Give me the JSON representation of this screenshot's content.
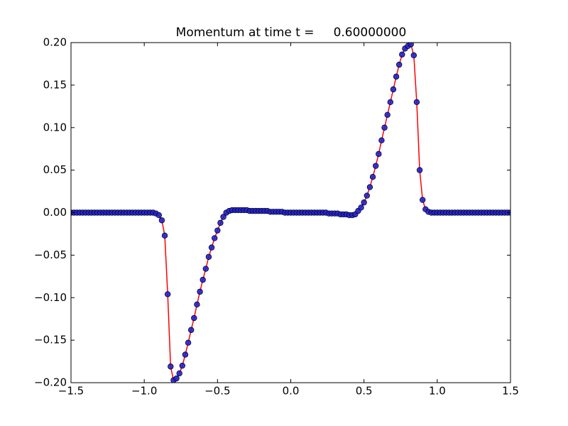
{
  "chart_data": {
    "type": "line",
    "title": "Momentum at time t =     0.60000000",
    "x": [
      -1.5,
      -1.48,
      -1.46,
      -1.44,
      -1.42,
      -1.4,
      -1.38,
      -1.36,
      -1.34,
      -1.32,
      -1.3,
      -1.28,
      -1.26,
      -1.24,
      -1.22,
      -1.2,
      -1.18,
      -1.16,
      -1.14,
      -1.12,
      -1.1,
      -1.08,
      -1.06,
      -1.04,
      -1.02,
      -1.0,
      -0.98,
      -0.96,
      -0.94,
      -0.92,
      -0.9,
      -0.88,
      -0.86,
      -0.84,
      -0.82,
      -0.8,
      -0.78,
      -0.76,
      -0.74,
      -0.72,
      -0.7,
      -0.68,
      -0.66,
      -0.64,
      -0.62,
      -0.6,
      -0.58,
      -0.56,
      -0.54,
      -0.52,
      -0.5,
      -0.48,
      -0.46,
      -0.44,
      -0.42,
      -0.4,
      -0.38,
      -0.36,
      -0.34,
      -0.32,
      -0.3,
      -0.28,
      -0.26,
      -0.24,
      -0.22,
      -0.2,
      -0.18,
      -0.16,
      -0.14,
      -0.12,
      -0.1,
      -0.08,
      -0.06,
      -0.04,
      -0.02,
      0,
      0.02,
      0.04,
      0.06,
      0.08,
      0.1,
      0.12,
      0.14,
      0.16,
      0.18,
      0.2,
      0.22,
      0.24,
      0.26,
      0.28,
      0.3,
      0.32,
      0.34,
      0.36,
      0.38,
      0.4,
      0.42,
      0.44,
      0.46,
      0.48,
      0.5,
      0.52,
      0.54,
      0.56,
      0.58,
      0.6,
      0.62,
      0.64,
      0.66,
      0.68,
      0.7,
      0.72,
      0.74,
      0.76,
      0.78,
      0.8,
      0.82,
      0.84,
      0.86,
      0.88,
      0.9,
      0.92,
      0.94,
      0.96,
      0.98,
      1.0,
      1.02,
      1.04,
      1.06,
      1.08,
      1.1,
      1.12,
      1.14,
      1.16,
      1.18,
      1.2,
      1.22,
      1.24,
      1.26,
      1.28,
      1.3,
      1.32,
      1.34,
      1.36,
      1.38,
      1.4,
      1.42,
      1.44,
      1.46,
      1.48,
      1.5
    ],
    "series": [
      {
        "color": "#ff0000",
        "marker_color": "#2222cc",
        "values": [
          0,
          0,
          0,
          0,
          0,
          0,
          0,
          0,
          0,
          0,
          0,
          0,
          0,
          0,
          0,
          0,
          0,
          0,
          0,
          0,
          0,
          0,
          0,
          0,
          0,
          0,
          0,
          0,
          0,
          -0.001,
          -0.003,
          -0.009,
          -0.027,
          -0.096,
          -0.181,
          -0.197,
          -0.195,
          -0.189,
          -0.18,
          -0.167,
          -0.153,
          -0.138,
          -0.124,
          -0.108,
          -0.093,
          -0.079,
          -0.066,
          -0.052,
          -0.041,
          -0.03,
          -0.021,
          -0.012,
          -0.005,
          0,
          0.002,
          0.003,
          0.003,
          0.003,
          0.003,
          0.003,
          0.003,
          0.002,
          0.002,
          0.002,
          0.002,
          0.002,
          0.002,
          0.002,
          0.001,
          0.001,
          0.001,
          0.001,
          0.001,
          0,
          0,
          0,
          0,
          0,
          0,
          0,
          0,
          0,
          0,
          0,
          0,
          0,
          0,
          0,
          -0.001,
          -0.001,
          -0.001,
          -0.001,
          -0.002,
          -0.002,
          -0.002,
          -0.003,
          -0.003,
          -0.002,
          0.002,
          0.006,
          0.012,
          0.02,
          0.03,
          0.042,
          0.055,
          0.069,
          0.085,
          0.1,
          0.115,
          0.13,
          0.145,
          0.16,
          0.174,
          0.186,
          0.193,
          0.196,
          0.198,
          0.185,
          0.13,
          0.05,
          0.015,
          0.004,
          0.001,
          0,
          0,
          0,
          0,
          0,
          0,
          0,
          0,
          0,
          0,
          0,
          0,
          0,
          0,
          0,
          0,
          0,
          0,
          0,
          0,
          0,
          0,
          0,
          0,
          0,
          0,
          0,
          0
        ]
      }
    ],
    "xlim": [
      -1.5,
      1.5
    ],
    "ylim": [
      -0.2,
      0.2
    ],
    "xticks": [
      {
        "value": -1.5,
        "label": "−1.5"
      },
      {
        "value": -1.0,
        "label": "−1.0"
      },
      {
        "value": -0.5,
        "label": "−0.5"
      },
      {
        "value": 0,
        "label": "0.0"
      },
      {
        "value": 0.5,
        "label": "0.5"
      },
      {
        "value": 1.0,
        "label": "1.0"
      },
      {
        "value": 1.5,
        "label": "1.5"
      }
    ],
    "yticks": [
      {
        "value": -0.2,
        "label": "−0.20"
      },
      {
        "value": -0.15,
        "label": "−0.15"
      },
      {
        "value": -0.1,
        "label": "−0.10"
      },
      {
        "value": -0.05,
        "label": "−0.05"
      },
      {
        "value": 0,
        "label": "0.00"
      },
      {
        "value": 0.05,
        "label": "0.05"
      },
      {
        "value": 0.1,
        "label": "0.10"
      },
      {
        "value": 0.15,
        "label": "0.15"
      },
      {
        "value": 0.2,
        "label": "0.20"
      }
    ],
    "grid": false
  }
}
